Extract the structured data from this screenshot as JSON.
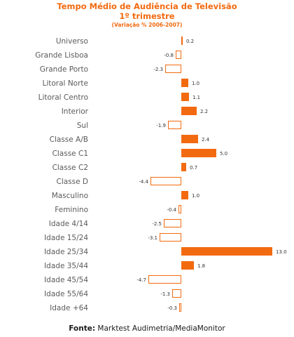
{
  "header": {
    "title": "Tempo Médio de Audiência  de Televisão",
    "subtitle": "1º trimestre",
    "note": "(Variação % 2006-2007)"
  },
  "source": {
    "label": "Fonte:",
    "text": "Marktest Audimetria/MediaMonitor"
  },
  "colors": {
    "accent": "#f26a10",
    "positive_fill": "#f26a10",
    "negative_fill": "#ffffff",
    "negative_stroke": "#f26a10"
  },
  "chart_data": {
    "type": "bar",
    "orientation": "horizontal",
    "title": "Tempo Médio de Audiência  de Televisão",
    "subtitle": "1º trimestre",
    "categories": [
      "Universo",
      "Grande Lisboa",
      "Grande Porto",
      "Litoral Norte",
      "Litoral Centro",
      "Interior",
      "Sul",
      "Classe A/B",
      "Classe C1",
      "Classe C2",
      "Classe D",
      "Masculino",
      "Feminino",
      "Idade 4/14",
      "Idade 15/24",
      "Idade 25/34",
      "Idade 35/44",
      "Idade 45/54",
      "Idade 55/64",
      "Idade +64"
    ],
    "values": [
      0.2,
      -0.8,
      -2.3,
      1.0,
      1.1,
      2.2,
      -1.9,
      2.4,
      5.0,
      0.7,
      -4.4,
      1.0,
      -0.4,
      -2.5,
      -3.1,
      13.0,
      1.8,
      -4.7,
      -1.3,
      -0.3
    ],
    "value_labels": [
      "0.2",
      "-0.8",
      "-2.3",
      "1.0",
      "1.1",
      "2.2",
      "-1.9",
      "2.4",
      "5.0",
      "0.7",
      "-4.4",
      "1.0",
      "-0.4",
      "-2.5",
      "-3.1",
      "13.0",
      "1.8",
      "-4.7",
      "-1.3",
      "-0.3"
    ],
    "xlim": [
      -5,
      13
    ],
    "grid": false,
    "legend": "none"
  }
}
